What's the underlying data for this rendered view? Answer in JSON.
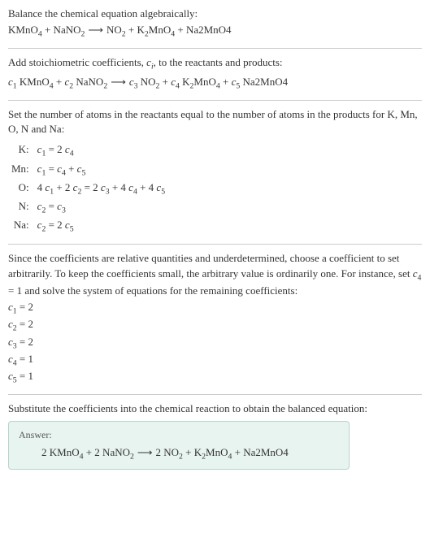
{
  "section1": {
    "intro": "Balance the chemical equation algebraically:",
    "eq_lhs1": "KMnO",
    "eq_lhs1_sub": "4",
    "eq_plus1": " + NaNO",
    "eq_lhs2_sub": "2",
    "arrow": " ⟶ ",
    "eq_rhs1": "NO",
    "eq_rhs1_sub": "2",
    "eq_plus2": " + K",
    "eq_rhs2_sub": "2",
    "eq_rhs2b": "MnO",
    "eq_rhs2b_sub": "4",
    "eq_plus3": " + Na2MnO4"
  },
  "section2": {
    "intro_a": "Add stoichiometric coefficients, ",
    "ci": "c",
    "ci_sub": "i",
    "intro_b": ", to the reactants and products:",
    "c1": "c",
    "s1": "1",
    "t1": " KMnO",
    "t1s": "4",
    "p1": " + ",
    "c2": "c",
    "s2": "2",
    "t2": " NaNO",
    "t2s": "2",
    "arrow": " ⟶ ",
    "c3": "c",
    "s3": "3",
    "t3": " NO",
    "t3s": "2",
    "p2": " + ",
    "c4": "c",
    "s4": "4",
    "t4a": " K",
    "t4as": "2",
    "t4b": "MnO",
    "t4bs": "4",
    "p3": " + ",
    "c5": "c",
    "s5": "5",
    "t5": " Na2MnO4"
  },
  "section3": {
    "intro": "Set the number of atoms in the reactants equal to the number of atoms in the products for K, Mn, O, N and Na:",
    "rows": [
      {
        "el": "K:",
        "lhs_c": "c",
        "lhs_s": "1",
        "eq": " = 2 ",
        "rhs_c": "c",
        "rhs_s": "4",
        "extra": ""
      },
      {
        "el": "Mn:",
        "lhs_c": "c",
        "lhs_s": "1",
        "eq": " = ",
        "rhs_c": "c",
        "rhs_s": "4",
        "extra_plus": " + ",
        "extra_c": "c",
        "extra_s": "5"
      },
      {
        "el": "O:",
        "pre": "4 ",
        "lhs_c": "c",
        "lhs_s": "1",
        "mid1": " + 2 ",
        "lhs_c2": "c",
        "lhs_s2": "2",
        "eq": " = 2 ",
        "rhs_c": "c",
        "rhs_s": "3",
        "mid2": " + 4 ",
        "rhs_c2": "c",
        "rhs_s2": "4",
        "mid3": " + 4 ",
        "rhs_c3": "c",
        "rhs_s3": "5"
      },
      {
        "el": "N:",
        "lhs_c": "c",
        "lhs_s": "2",
        "eq": " = ",
        "rhs_c": "c",
        "rhs_s": "3",
        "extra": ""
      },
      {
        "el": "Na:",
        "lhs_c": "c",
        "lhs_s": "2",
        "eq": " = 2 ",
        "rhs_c": "c",
        "rhs_s": "5",
        "extra": ""
      }
    ]
  },
  "section4": {
    "intro_a": "Since the coefficients are relative quantities and underdetermined, choose a coefficient to set arbitrarily. To keep the coefficients small, the arbitrary value is ordinarily one. For instance, set ",
    "c4": "c",
    "c4s": "4",
    "intro_b": " = 1 and solve the system of equations for the remaining coefficients:",
    "coeffs": [
      {
        "c": "c",
        "s": "1",
        "v": " = 2"
      },
      {
        "c": "c",
        "s": "2",
        "v": " = 2"
      },
      {
        "c": "c",
        "s": "3",
        "v": " = 2"
      },
      {
        "c": "c",
        "s": "4",
        "v": " = 1"
      },
      {
        "c": "c",
        "s": "5",
        "v": " = 1"
      }
    ]
  },
  "section5": {
    "intro": "Substitute the coefficients into the chemical reaction to obtain the balanced equation:",
    "answer_label": "Answer:",
    "eq_a": "2 KMnO",
    "eq_as": "4",
    "eq_b": " + 2 NaNO",
    "eq_bs": "2",
    "arrow": " ⟶ ",
    "eq_c": "2 NO",
    "eq_cs": "2",
    "eq_d": " + K",
    "eq_ds": "2",
    "eq_e": "MnO",
    "eq_es": "4",
    "eq_f": " + Na2MnO4"
  },
  "colors": {
    "text": "#333333",
    "hr": "#cccccc",
    "answer_bg": "#e8f4f0",
    "answer_border": "#b8d4cc",
    "answer_label": "#555555"
  }
}
